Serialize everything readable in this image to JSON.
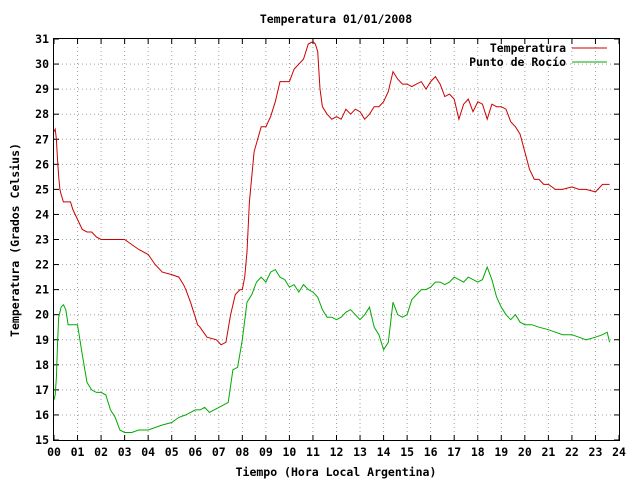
{
  "chart_data": {
    "type": "line",
    "title": "Temperatura 01/01/2008",
    "xlabel": "Tiempo (Hora Local Argentina)",
    "ylabel": "Temperatura (Grados Celsius)",
    "xlim": [
      0,
      24
    ],
    "ylim": [
      15,
      31
    ],
    "x_ticks": [
      "00",
      "01",
      "02",
      "03",
      "04",
      "05",
      "06",
      "07",
      "08",
      "09",
      "10",
      "11",
      "12",
      "13",
      "14",
      "15",
      "16",
      "17",
      "18",
      "19",
      "20",
      "21",
      "22",
      "23",
      "24"
    ],
    "y_ticks": [
      "15",
      "16",
      "17",
      "18",
      "19",
      "20",
      "21",
      "22",
      "23",
      "24",
      "25",
      "26",
      "27",
      "28",
      "29",
      "30",
      "31"
    ],
    "grid": true,
    "legend_position": "top-right",
    "colors": {
      "temperatura": "#cc0000",
      "punto_de_rocio": "#00aa00"
    },
    "series": [
      {
        "name": "Temperatura",
        "x": [
          0.0,
          0.05,
          0.1,
          0.15,
          0.2,
          0.25,
          0.3,
          0.4,
          0.5,
          0.6,
          0.7,
          0.8,
          1.0,
          1.2,
          1.4,
          1.6,
          1.8,
          2.0,
          2.5,
          3.0,
          3.3,
          3.6,
          4.0,
          4.3,
          4.6,
          5.0,
          5.3,
          5.5,
          5.6,
          5.8,
          6.0,
          6.1,
          6.2,
          6.5,
          6.9,
          7.0,
          7.1,
          7.3,
          7.5,
          7.7,
          7.9,
          8.0,
          8.1,
          8.2,
          8.3,
          8.5,
          8.8,
          9.0,
          9.2,
          9.4,
          9.6,
          9.8,
          10.0,
          10.2,
          10.4,
          10.6,
          10.8,
          11.0,
          11.1,
          11.2,
          11.3,
          11.4,
          11.6,
          11.8,
          12.0,
          12.2,
          12.4,
          12.6,
          12.8,
          13.0,
          13.2,
          13.4,
          13.6,
          13.8,
          14.0,
          14.2,
          14.4,
          14.6,
          14.8,
          15.0,
          15.2,
          15.4,
          15.6,
          15.8,
          16.0,
          16.2,
          16.4,
          16.6,
          16.8,
          17.0,
          17.2,
          17.4,
          17.6,
          17.8,
          18.0,
          18.2,
          18.4,
          18.6,
          18.8,
          19.0,
          19.2,
          19.4,
          19.6,
          19.8,
          20.0,
          20.2,
          20.4,
          20.6,
          20.8,
          21.0,
          21.3,
          21.6,
          22.0,
          22.3,
          22.6,
          23.0,
          23.3,
          23.6
        ],
        "values": [
          27.3,
          27.4,
          27.0,
          26.2,
          25.5,
          25.0,
          24.8,
          24.5,
          24.5,
          24.5,
          24.5,
          24.2,
          23.8,
          23.4,
          23.3,
          23.3,
          23.1,
          23.0,
          23.0,
          23.0,
          22.8,
          22.6,
          22.4,
          22.0,
          21.7,
          21.6,
          21.5,
          21.2,
          21.0,
          20.5,
          19.9,
          19.6,
          19.5,
          19.1,
          19.0,
          18.9,
          18.8,
          18.9,
          20.0,
          20.8,
          21.0,
          21.0,
          21.5,
          22.5,
          24.5,
          26.5,
          27.5,
          27.5,
          27.9,
          28.5,
          29.3,
          29.3,
          29.3,
          29.8,
          30.0,
          30.2,
          30.8,
          30.9,
          30.8,
          30.5,
          29.0,
          28.3,
          28.0,
          27.8,
          27.9,
          27.8,
          28.2,
          28.0,
          28.2,
          28.1,
          27.8,
          28.0,
          28.3,
          28.3,
          28.5,
          28.9,
          29.7,
          29.4,
          29.2,
          29.2,
          29.1,
          29.2,
          29.3,
          29.0,
          29.3,
          29.5,
          29.2,
          28.7,
          28.8,
          28.6,
          27.8,
          28.4,
          28.6,
          28.1,
          28.5,
          28.4,
          27.8,
          28.4,
          28.3,
          28.3,
          28.2,
          27.7,
          27.5,
          27.2,
          26.5,
          25.8,
          25.4,
          25.4,
          25.2,
          25.2,
          25.0,
          25.0,
          25.1,
          25.0,
          25.0,
          24.9,
          25.2,
          25.2
        ]
      },
      {
        "name": "Punto de Rocío",
        "x": [
          0.0,
          0.05,
          0.1,
          0.15,
          0.2,
          0.3,
          0.4,
          0.5,
          0.6,
          0.8,
          1.0,
          1.2,
          1.4,
          1.6,
          1.8,
          2.0,
          2.2,
          2.4,
          2.6,
          2.8,
          3.0,
          3.3,
          3.6,
          4.0,
          4.3,
          4.6,
          5.0,
          5.3,
          5.6,
          6.0,
          6.2,
          6.4,
          6.6,
          6.8,
          7.0,
          7.2,
          7.4,
          7.6,
          7.8,
          8.0,
          8.2,
          8.4,
          8.6,
          8.8,
          9.0,
          9.2,
          9.4,
          9.6,
          9.8,
          10.0,
          10.2,
          10.4,
          10.6,
          10.8,
          11.0,
          11.2,
          11.4,
          11.6,
          11.8,
          12.0,
          12.2,
          12.4,
          12.6,
          12.8,
          13.0,
          13.2,
          13.4,
          13.6,
          13.8,
          14.0,
          14.2,
          14.4,
          14.6,
          14.8,
          15.0,
          15.2,
          15.4,
          15.6,
          15.8,
          16.0,
          16.2,
          16.4,
          16.6,
          16.8,
          17.0,
          17.2,
          17.4,
          17.6,
          17.8,
          18.0,
          18.2,
          18.4,
          18.6,
          18.8,
          19.0,
          19.2,
          19.4,
          19.6,
          19.8,
          20.0,
          20.3,
          20.6,
          21.0,
          21.3,
          21.6,
          22.0,
          22.3,
          22.6,
          23.0,
          23.3,
          23.5,
          23.6
        ],
        "values": [
          16.6,
          16.8,
          17.5,
          18.8,
          19.9,
          20.3,
          20.4,
          20.2,
          19.6,
          19.6,
          19.6,
          18.4,
          17.3,
          17.0,
          16.9,
          16.9,
          16.8,
          16.2,
          15.9,
          15.4,
          15.3,
          15.3,
          15.4,
          15.4,
          15.5,
          15.6,
          15.7,
          15.9,
          16.0,
          16.2,
          16.2,
          16.3,
          16.1,
          16.2,
          16.3,
          16.4,
          16.5,
          17.8,
          17.9,
          19.0,
          20.5,
          20.8,
          21.3,
          21.5,
          21.3,
          21.7,
          21.8,
          21.5,
          21.4,
          21.1,
          21.2,
          20.9,
          21.2,
          21.0,
          20.9,
          20.7,
          20.2,
          19.9,
          19.9,
          19.8,
          19.9,
          20.1,
          20.2,
          20.0,
          19.8,
          20.0,
          20.3,
          19.5,
          19.2,
          18.6,
          18.9,
          20.5,
          20.0,
          19.9,
          20.0,
          20.6,
          20.8,
          21.0,
          21.0,
          21.1,
          21.3,
          21.3,
          21.2,
          21.3,
          21.5,
          21.4,
          21.3,
          21.5,
          21.4,
          21.3,
          21.4,
          21.9,
          21.4,
          20.7,
          20.3,
          20.0,
          19.8,
          20.0,
          19.7,
          19.6,
          19.6,
          19.5,
          19.4,
          19.3,
          19.2,
          19.2,
          19.1,
          19.0,
          19.1,
          19.2,
          19.3,
          18.9
        ]
      }
    ]
  }
}
